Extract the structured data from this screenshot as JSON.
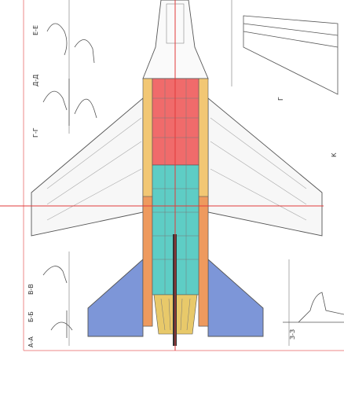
{
  "section_labels": {
    "ee": "Е-Е",
    "dd": "Д-Д",
    "gg": "Г-Г",
    "vv": "В-В",
    "bb": "Б-Б",
    "aa": "А-А",
    "zz": "З-З",
    "k": "К",
    "g": "Г"
  },
  "colors": {
    "grid_line": "#e23b3b",
    "red_zone": "#f06b6b",
    "yellow_zone": "#f2c774",
    "cyan_zone": "#5ecdc5",
    "orange_zone": "#ee9a5e",
    "blue_zone": "#7d96d8",
    "nozzle_zone": "#e8c96a",
    "ink": "#444444"
  }
}
